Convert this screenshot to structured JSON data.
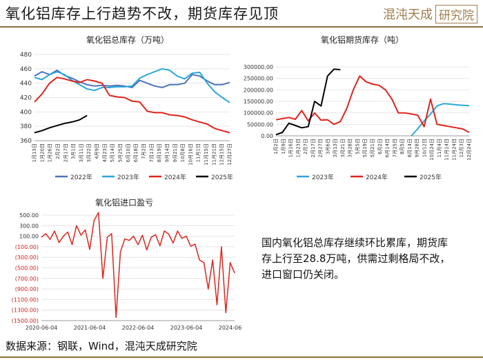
{
  "header": {
    "title": "氧化铝库存上行趋势不改，期货库存见顶",
    "logo_text": "混沌天成",
    "logo_box": "研究院"
  },
  "footer": {
    "source": "数据来源：钢联，Wind，混沌天成研究院"
  },
  "commentary": "国内氧化铝总库存继续环比累库，期货库存上行至28.8万吨，供需过剩格局不改，进口窗口仍关闭。",
  "colors": {
    "y2022": "#4a74b8",
    "y2023": "#2aa6dc",
    "y2024": "#e0231b",
    "y2025": "#000000",
    "brand": "#8a6d3b"
  },
  "chart_data": [
    {
      "id": "total-inventory",
      "type": "line",
      "title": "氧化铝总库存（万吨）",
      "ylim": [
        360,
        480
      ],
      "yticks": [
        "360",
        "380",
        "400",
        "420",
        "440",
        "460",
        "480"
      ],
      "xticks": [
        "1月13日",
        "1月20日",
        "1月26日",
        "2月2日",
        "2月17日",
        "3月1日",
        "3月11日",
        "3月22日",
        "4月9日",
        "4月23日",
        "5月14日",
        "5月25日",
        "6月10日",
        "6月18日",
        "7月2日",
        "7月13日",
        "8月19日",
        "9月14日",
        "9月21日",
        "10月8日",
        "10月16日",
        "11月1日",
        "11月15日",
        "11月21日",
        "12月15日",
        "12月27日"
      ],
      "series": [
        {
          "name": "2022年",
          "color": "#4a74b8",
          "values": [
            450,
            456,
            452,
            458,
            451,
            447,
            442,
            438,
            436,
            437,
            436,
            437,
            436,
            434,
            444,
            440,
            436,
            434,
            438,
            438,
            440,
            452,
            450,
            443,
            438,
            438,
            441
          ]
        },
        {
          "name": "2023年",
          "color": "#2aa6dc",
          "values": [
            448,
            445,
            452,
            456,
            452,
            444,
            438,
            432,
            430,
            434,
            434,
            435,
            435,
            436,
            447,
            452,
            456,
            460,
            458,
            450,
            446,
            454,
            455,
            440,
            428,
            420,
            413
          ]
        },
        {
          "name": "2024年",
          "color": "#e0231b",
          "values": [
            414,
            425,
            440,
            448,
            446,
            443,
            441,
            445,
            443,
            440,
            423,
            421,
            420,
            415,
            414,
            401,
            399,
            399,
            396,
            395,
            393,
            389,
            386,
            383,
            377,
            374,
            371
          ]
        },
        {
          "name": "2025年",
          "color": "#000000",
          "values": [
            371,
            374,
            378,
            381,
            384,
            386,
            389,
            395
          ]
        }
      ]
    },
    {
      "id": "futures-inventory",
      "type": "line",
      "title": "氧化铝期货库存（吨）",
      "ylim": [
        0,
        300000
      ],
      "yticks": [
        "0.00",
        "50000.00",
        "100000.00",
        "150000.00",
        "200000.00",
        "250000.00",
        "300000.00"
      ],
      "xticks": [
        "1月2日",
        "1月9日",
        "1月16日",
        "1月23日",
        "2月7日",
        "2月17日",
        "2月27日",
        "3月6日",
        "3月13日",
        "3月21日",
        "3月28日",
        "5月5日",
        "5月19日",
        "5月21日",
        "6月2日",
        "6月14日",
        "7月25日",
        "8月5日",
        "8月14日",
        "9月28日",
        "10/12日",
        "10月24日",
        "11月4日",
        "11月14日",
        "11月24日",
        "12月3日",
        "12月24日"
      ],
      "series": [
        {
          "name": "2023年",
          "color": "#2aa6dc",
          "values": [
            null,
            null,
            null,
            null,
            null,
            null,
            null,
            null,
            null,
            null,
            null,
            null,
            null,
            null,
            null,
            null,
            null,
            null,
            null,
            null,
            null,
            0,
            30000,
            65000,
            95000,
            130000,
            140000,
            138000,
            135000,
            133000,
            131000
          ]
        },
        {
          "name": "2024年",
          "color": "#e0231b",
          "values": [
            70000,
            75000,
            80000,
            72000,
            110000,
            65000,
            100000,
            68000,
            70000,
            50000,
            62000,
            120000,
            200000,
            260000,
            235000,
            225000,
            220000,
            200000,
            160000,
            100000,
            100000,
            95000,
            90000,
            40000,
            160000,
            50000,
            45000,
            40000,
            35000,
            30000,
            15000
          ]
        },
        {
          "name": "2025年",
          "color": "#000000",
          "values": [
            5000,
            15000,
            55000,
            45000,
            35000,
            40000,
            150000,
            130000,
            260000,
            290000,
            288000
          ]
        }
      ]
    },
    {
      "id": "import-margin",
      "type": "line",
      "title": "氧化铝进口盈亏",
      "ylim": [
        -1500,
        500
      ],
      "yticks": [
        "500.00",
        "300.00",
        "100.00",
        "(100.00)",
        "(300.00)",
        "(500.00)",
        "(700.00)",
        "(900.00)",
        "(1100.00)",
        "(1300.00)",
        "(1500.00)"
      ],
      "xticks": [
        "2020-06-04",
        "2021-06-04",
        "2022-06-04",
        "2023-06-04",
        "2024-06-04"
      ],
      "series": [
        {
          "name": "盈亏",
          "color": "#e0231b",
          "values": [
            80,
            150,
            40,
            200,
            -20,
            100,
            180,
            -60,
            300,
            120,
            220,
            -150,
            400,
            550,
            -700,
            80,
            150,
            -1440,
            -200,
            50,
            20,
            100,
            -60,
            120,
            -160,
            80,
            130,
            -80,
            200,
            140,
            -30,
            200,
            60,
            100,
            -90,
            -50,
            -350,
            -400,
            -900,
            -350,
            -1200,
            -100,
            -1350,
            -400,
            -600
          ]
        }
      ]
    }
  ]
}
